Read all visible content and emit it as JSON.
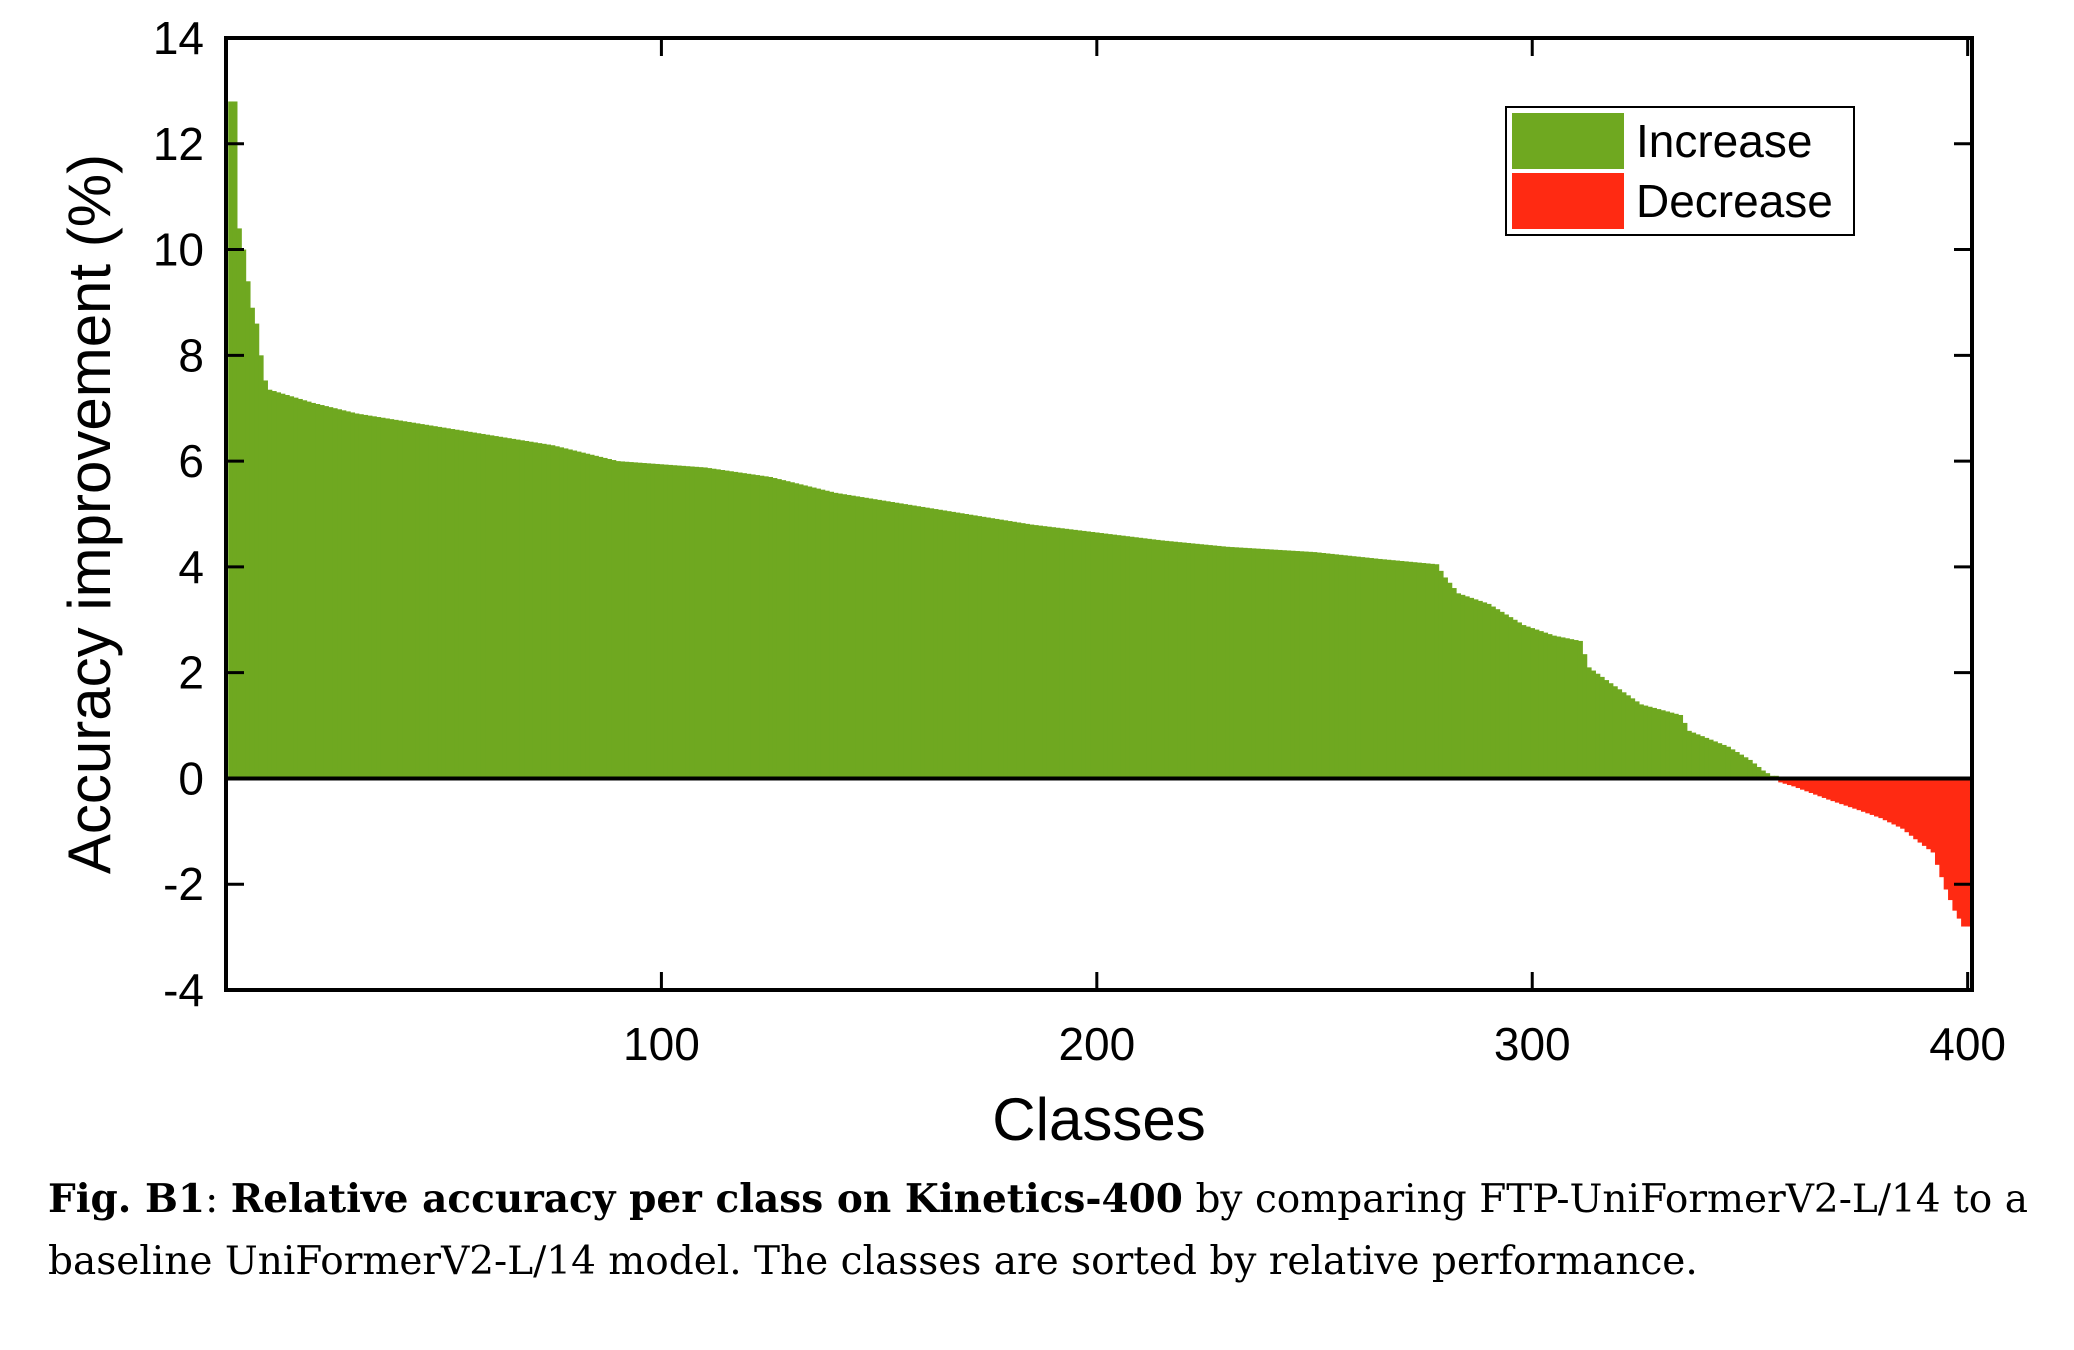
{
  "chart_data": {
    "type": "bar",
    "xlabel": "Classes",
    "ylabel": "Accuracy improvement (%)",
    "xlim": [
      0,
      401
    ],
    "ylim": [
      -4,
      14
    ],
    "xticks": [
      100,
      200,
      300,
      400
    ],
    "yticks": [
      -4,
      -2,
      0,
      2,
      4,
      6,
      8,
      10,
      12,
      14
    ],
    "legend_position": "top-right",
    "series": [
      {
        "name": "Increase",
        "color": "#6fa820"
      },
      {
        "name": "Decrease",
        "color": "#ff2a12"
      }
    ],
    "profile_points": [
      [
        1,
        12.8
      ],
      [
        2,
        10.4
      ],
      [
        3,
        10.0
      ],
      [
        4,
        9.4
      ],
      [
        5,
        8.9
      ],
      [
        6,
        8.6
      ],
      [
        7,
        8.0
      ],
      [
        8,
        7.7
      ],
      [
        10,
        7.35
      ],
      [
        20,
        7.1
      ],
      [
        30,
        6.9
      ],
      [
        45,
        6.7
      ],
      [
        60,
        6.5
      ],
      [
        75,
        6.3
      ],
      [
        90,
        6.0
      ],
      [
        110,
        5.88
      ],
      [
        125,
        5.7
      ],
      [
        140,
        5.4
      ],
      [
        155,
        5.2
      ],
      [
        170,
        5.0
      ],
      [
        185,
        4.8
      ],
      [
        200,
        4.65
      ],
      [
        215,
        4.5
      ],
      [
        230,
        4.38
      ],
      [
        250,
        4.28
      ],
      [
        265,
        4.15
      ],
      [
        278,
        4.05
      ],
      [
        280,
        3.8
      ],
      [
        283,
        3.5
      ],
      [
        290,
        3.3
      ],
      [
        298,
        2.9
      ],
      [
        305,
        2.7
      ],
      [
        311,
        2.6
      ],
      [
        313,
        2.1
      ],
      [
        318,
        1.8
      ],
      [
        325,
        1.4
      ],
      [
        334,
        1.2
      ],
      [
        336,
        0.9
      ],
      [
        345,
        0.6
      ],
      [
        350,
        0.35
      ],
      [
        353,
        0.15
      ],
      [
        355,
        0.05
      ],
      [
        356,
        -0.05
      ],
      [
        360,
        -0.15
      ],
      [
        368,
        -0.4
      ],
      [
        375,
        -0.6
      ],
      [
        380,
        -0.75
      ],
      [
        385,
        -0.95
      ],
      [
        388,
        -1.15
      ],
      [
        392,
        -1.4
      ],
      [
        395,
        -2.1
      ],
      [
        397,
        -2.5
      ],
      [
        399,
        -2.8
      ],
      [
        400,
        -3.1
      ]
    ]
  },
  "caption": {
    "label": "Fig. B1",
    "colon": ": ",
    "bold_text": "Relative accuracy per class on Kinetics-400",
    "rest_text": " by comparing FTP-UniFormerV2-L/14 to a baseline UniFormerV2-L/14 model. The classes are sorted by relative performance."
  }
}
